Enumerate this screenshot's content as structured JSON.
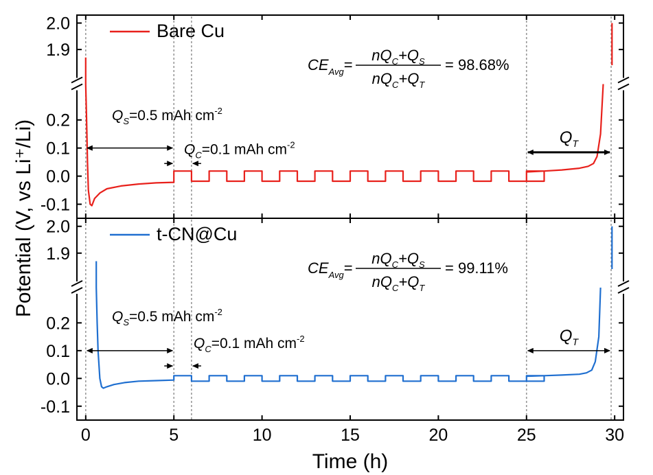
{
  "chart_data": {
    "type": "line",
    "xlabel": "Time (h)",
    "ylabel": "Potential (V, vs Li⁺/Li)",
    "xlim": [
      -0.5,
      30.5
    ],
    "xticks": [
      0,
      5,
      10,
      15,
      20,
      25,
      30
    ],
    "xtick_labels": [
      "0",
      "5",
      "10",
      "15",
      "20",
      "25",
      "30"
    ],
    "ylim_lower": [
      -0.15,
      0.28
    ],
    "ylim_upper": [
      1.82,
      2.03
    ],
    "yticks_lower": [
      -0.1,
      0.0,
      0.1,
      0.2
    ],
    "yticks_lower_labels": [
      "-0.1",
      "0.0",
      "0.1",
      "0.2"
    ],
    "yticks_upper": [
      1.9,
      2.0
    ],
    "yticks_upper_labels": [
      "1.9",
      "2.0"
    ],
    "dotted_lines_x": [
      0,
      5,
      6,
      25,
      29.8
    ],
    "panels": [
      {
        "name": "Bare Cu",
        "color": "#e8201b",
        "ce_prefix": "CE",
        "ce_sub": "Avg",
        "ce_value": "= 98.68%",
        "frac_num": "nQ",
        "frac_num_sub1": "C",
        "frac_num_plus": "+Q",
        "frac_num_sub2": "S",
        "frac_den": "nQ",
        "frac_den_sub1": "C",
        "frac_den_plus": "+Q",
        "frac_den_sub2": "T",
        "qs_label": "Q",
        "qs_sub": "S",
        "qs_text": "=0.5 mAh cm",
        "qs_sup": "-2",
        "qc_label": "Q",
        "qc_sub": "C",
        "qc_text": "=0.1 mAh cm",
        "qc_sup": "-2",
        "qt_label": "Q",
        "qt_sub": "T",
        "pulse_amp": 0.018,
        "early_x": [
          0,
          0.05,
          0.1,
          0.15,
          0.25,
          0.35,
          0.5,
          0.8,
          1.2,
          2,
          3,
          4,
          5
        ],
        "early_y": [
          0.3,
          0.2,
          0.05,
          -0.05,
          -0.1,
          -0.105,
          -0.08,
          -0.06,
          -0.045,
          -0.035,
          -0.028,
          -0.024,
          -0.022
        ],
        "spike_y": 1.87,
        "stripping_x": [
          25,
          26,
          27,
          28,
          28.5,
          28.8,
          29.0,
          29.2,
          29.35
        ],
        "stripping_y": [
          0.015,
          0.018,
          0.022,
          0.028,
          0.035,
          0.045,
          0.07,
          0.15,
          0.3
        ],
        "end_spike_y": 2.0
      },
      {
        "name": "t-CN@Cu",
        "color": "#1f6fd0",
        "ce_prefix": "CE",
        "ce_sub": "Avg",
        "ce_value": "= 99.11%",
        "frac_num": "nQ",
        "frac_num_sub1": "C",
        "frac_num_plus": "+Q",
        "frac_num_sub2": "S",
        "frac_den": "nQ",
        "frac_den_sub1": "C",
        "frac_den_plus": "+Q",
        "frac_den_sub2": "T",
        "qs_label": "Q",
        "qs_sub": "S",
        "qs_text": "=0.5 mAh cm",
        "qs_sup": "-2",
        "qc_label": "Q",
        "qc_sub": "C",
        "qc_text": "=0.1 mAh cm",
        "qc_sup": "-2",
        "qt_label": "Q",
        "qt_sub": "T",
        "pulse_amp": 0.01,
        "early_x": [
          0.6,
          0.65,
          0.7,
          0.8,
          0.9,
          1.0,
          1.2,
          1.6,
          2.2,
          3,
          4,
          5
        ],
        "early_y": [
          0.3,
          0.2,
          0.1,
          0.0,
          -0.03,
          -0.035,
          -0.03,
          -0.022,
          -0.015,
          -0.01,
          -0.008,
          -0.006
        ],
        "spike_y": 1.87,
        "stripping_x": [
          25,
          26,
          27,
          28,
          28.4,
          28.7,
          28.9,
          29.1,
          29.2
        ],
        "stripping_y": [
          0.008,
          0.01,
          0.012,
          0.015,
          0.02,
          0.03,
          0.06,
          0.15,
          0.3
        ],
        "end_spike_y": 2.0
      }
    ]
  }
}
